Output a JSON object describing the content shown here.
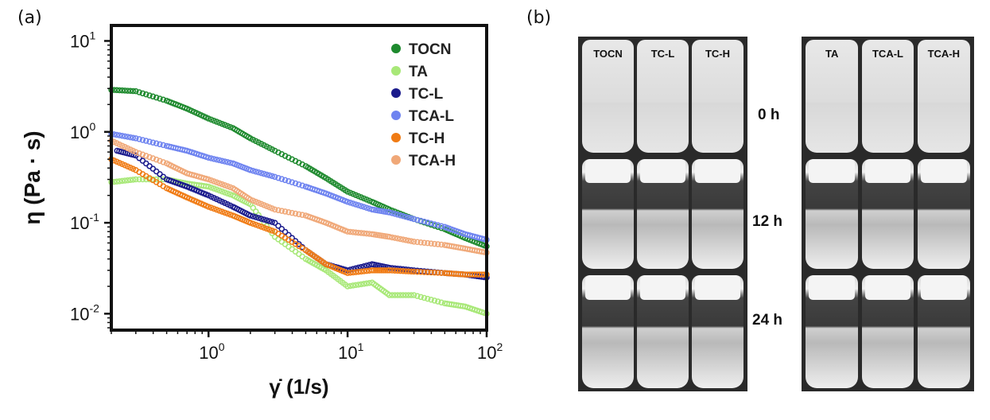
{
  "panel_labels": {
    "a": "(a)",
    "b": "(b)"
  },
  "chart_data": {
    "type": "scatter",
    "xlabel": "γ̇ (1/s)",
    "ylabel": "η  (Pa · s)",
    "xscale": "log",
    "yscale": "log",
    "xlim": [
      0.2,
      100
    ],
    "ylim": [
      0.0066,
      14.8
    ],
    "xticks": [
      {
        "v": 1,
        "label": "10",
        "exp": "0"
      },
      {
        "v": 10,
        "label": "10",
        "exp": "1"
      },
      {
        "v": 100,
        "label": "10",
        "exp": "2"
      }
    ],
    "yticks": [
      {
        "v": 10,
        "label": "10",
        "exp": "1"
      },
      {
        "v": 1,
        "label": "10",
        "exp": "0"
      },
      {
        "v": 0.1,
        "label": "10",
        "exp": "-1"
      },
      {
        "v": 0.01,
        "label": "10",
        "exp": "-2"
      }
    ],
    "legend_position": "top-right",
    "marker": "open-circle",
    "series": [
      {
        "name": "TOCN",
        "color": "#1e8a2e",
        "x": [
          0.2,
          0.3,
          0.5,
          0.7,
          1,
          1.5,
          2,
          3,
          5,
          7,
          10,
          15,
          20,
          30,
          50,
          70,
          100
        ],
        "y": [
          2.9,
          2.8,
          2.2,
          1.8,
          1.4,
          1.1,
          0.85,
          0.62,
          0.42,
          0.31,
          0.22,
          0.17,
          0.14,
          0.11,
          0.085,
          0.068,
          0.055
        ]
      },
      {
        "name": "TA",
        "color": "#a8e878",
        "x": [
          0.2,
          0.3,
          0.5,
          0.7,
          1,
          1.5,
          2,
          3,
          5,
          7,
          10,
          15,
          20,
          30,
          50,
          70,
          100
        ],
        "y": [
          0.28,
          0.3,
          0.3,
          0.27,
          0.25,
          0.2,
          0.16,
          0.07,
          0.04,
          0.03,
          0.02,
          0.022,
          0.016,
          0.016,
          0.013,
          0.012,
          0.01
        ]
      },
      {
        "name": "TC-L",
        "color": "#1a1a8c",
        "x": [
          0.22,
          0.3,
          0.5,
          0.7,
          1,
          1.5,
          2,
          3,
          5,
          7,
          10,
          15,
          20,
          30,
          50,
          70,
          100
        ],
        "y": [
          0.62,
          0.55,
          0.3,
          0.25,
          0.2,
          0.15,
          0.12,
          0.1,
          0.05,
          0.035,
          0.03,
          0.035,
          0.032,
          0.03,
          0.028,
          0.027,
          0.025
        ]
      },
      {
        "name": "TCA-L",
        "color": "#6f84f0",
        "x": [
          0.2,
          0.3,
          0.5,
          0.7,
          1,
          1.5,
          2,
          3,
          5,
          7,
          10,
          15,
          20,
          30,
          50,
          70,
          100
        ],
        "y": [
          0.95,
          0.85,
          0.7,
          0.62,
          0.52,
          0.45,
          0.38,
          0.32,
          0.25,
          0.21,
          0.17,
          0.14,
          0.13,
          0.11,
          0.09,
          0.075,
          0.065
        ]
      },
      {
        "name": "TC-H",
        "color": "#f07b14",
        "x": [
          0.2,
          0.3,
          0.5,
          0.7,
          1,
          1.5,
          2,
          3,
          5,
          7,
          10,
          15,
          20,
          30,
          50,
          70,
          100
        ],
        "y": [
          0.5,
          0.38,
          0.24,
          0.19,
          0.15,
          0.12,
          0.1,
          0.08,
          0.05,
          0.035,
          0.028,
          0.03,
          0.03,
          0.029,
          0.028,
          0.027,
          0.027
        ]
      },
      {
        "name": "TCA-H",
        "color": "#f0a878",
        "x": [
          0.2,
          0.3,
          0.5,
          0.7,
          1,
          1.5,
          2,
          3,
          5,
          7,
          10,
          15,
          20,
          30,
          50,
          70,
          100
        ],
        "y": [
          0.8,
          0.6,
          0.45,
          0.35,
          0.3,
          0.24,
          0.18,
          0.14,
          0.12,
          0.1,
          0.08,
          0.075,
          0.07,
          0.062,
          0.057,
          0.052,
          0.047
        ]
      }
    ]
  },
  "photos": {
    "left_labels": [
      "TOCN",
      "TC-L",
      "TC-H"
    ],
    "right_labels": [
      "TA",
      "TCA-L",
      "TCA-H"
    ],
    "times": [
      "0 h",
      "12 h",
      "24 h"
    ]
  }
}
